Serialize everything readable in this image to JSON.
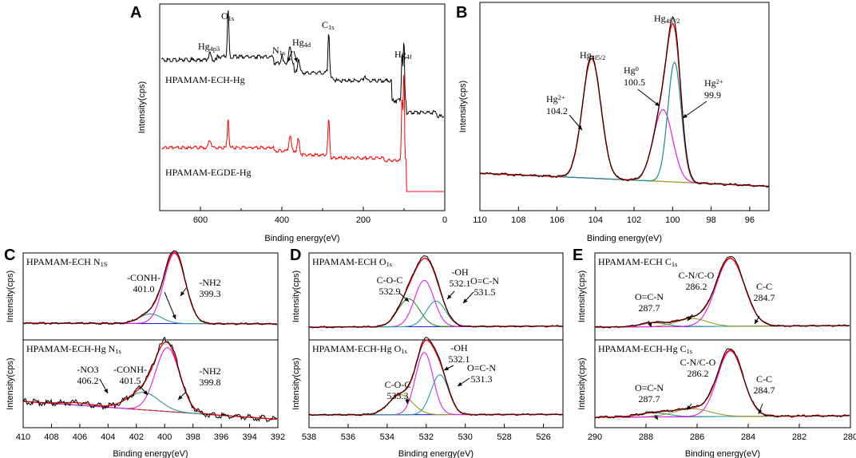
{
  "figure": {
    "panel_letters": [
      "A",
      "B",
      "C",
      "D",
      "E"
    ]
  },
  "chart_data": [
    {
      "id": "A",
      "type": "line",
      "title": "",
      "xlabel": "Binding energy(eV)",
      "ylabel": "Intensity(cps)",
      "xlim": [
        700,
        0
      ],
      "xticks": [
        600,
        400,
        200,
        0
      ],
      "series": [
        {
          "name": "HPAMAM-ECH-Hg",
          "color": "#000000",
          "peaks": [
            {
              "label": "Hg4p3",
              "x": 577
            },
            {
              "label": "O1s",
              "x": 532
            },
            {
              "label": "N1s",
              "x": 400
            },
            {
              "label": "Hg4d",
              "x": 380
            },
            {
              "label": "C1s",
              "x": 285
            },
            {
              "label": "Hg4f",
              "x": 101
            }
          ]
        },
        {
          "name": "HPAMAM-EGDE-Hg",
          "color": "#ff0000"
        }
      ],
      "labels": [
        {
          "base": "Hg",
          "sub": "4p3"
        },
        {
          "base": "O",
          "sub": "1s"
        },
        {
          "base": "N",
          "sub": "1s"
        },
        {
          "base": "Hg",
          "sub": "4d"
        },
        {
          "base": "C",
          "sub": "1s"
        },
        {
          "base": "Hg",
          "sub": "4f"
        }
      ]
    },
    {
      "id": "B",
      "type": "line",
      "xlabel": "Binding energy(eV)",
      "ylabel": "Intensity(cps)",
      "xlim": [
        110,
        95
      ],
      "xticks": [
        110,
        108,
        106,
        104,
        102,
        100,
        98,
        96
      ],
      "peak_labels": [
        {
          "base": "Hg",
          "sub": "4f5/2"
        },
        {
          "base": "Hg",
          "sub": "4f7/2"
        }
      ],
      "components": [
        {
          "species": "Hg",
          "sup": "2+",
          "value": "104.2",
          "x": 104.2
        },
        {
          "species": "Hg",
          "sup": "0",
          "value": "100.5",
          "x": 100.5
        },
        {
          "species": "Hg",
          "sup": "2+",
          "value": "99.9",
          "x": 99.9
        }
      ]
    },
    {
      "id": "C",
      "type": "line",
      "xlabel": "Binding energy(eV)",
      "ylabel": "Intensity(cps)",
      "xlim": [
        410,
        392
      ],
      "xticks": [
        410,
        408,
        406,
        404,
        402,
        400,
        398,
        396,
        394,
        392
      ],
      "subplots": [
        {
          "sample": "HPAMAM-ECH",
          "core": {
            "base": "N",
            "sub": "1S"
          },
          "components": [
            {
              "name": "-CONH-",
              "value": "401.0",
              "x": 401.0
            },
            {
              "name": "-NH2",
              "value": "399.3",
              "x": 399.3
            }
          ]
        },
        {
          "sample": "HPAMAM-ECH-Hg",
          "core": {
            "base": "N",
            "sub": "1s"
          },
          "components": [
            {
              "name": "-NO3",
              "value": "406.2",
              "x": 406.2
            },
            {
              "name": "-CONH-",
              "value": "401.5",
              "x": 401.5
            },
            {
              "name": "-NH2",
              "value": "399.8",
              "x": 399.8
            }
          ]
        }
      ]
    },
    {
      "id": "D",
      "type": "line",
      "xlabel": "Binding energy(eV)",
      "ylabel": "Intensity(cps)",
      "xlim": [
        538,
        525
      ],
      "xticks": [
        538,
        536,
        534,
        532,
        530,
        528,
        526
      ],
      "subplots": [
        {
          "sample": "HPAMAM-ECH",
          "core": {
            "base": "O",
            "sub": "1s"
          },
          "components": [
            {
              "name": "C-O-C",
              "value": "532.9",
              "x": 532.9
            },
            {
              "name": "-OH",
              "value": "532.1",
              "x": 532.1
            },
            {
              "name": "O=C-N",
              "value": "531.5",
              "x": 531.5
            }
          ]
        },
        {
          "sample": "HPAMAM-ECH-Hg",
          "core": {
            "base": "O",
            "sub": "1s"
          },
          "components": [
            {
              "name": "C-O-C",
              "value": "533.3",
              "x": 533.3
            },
            {
              "name": "-OH",
              "value": "532.1",
              "x": 532.1
            },
            {
              "name": "O=C-N",
              "value": "531.3",
              "x": 531.3
            }
          ]
        }
      ]
    },
    {
      "id": "E",
      "type": "line",
      "xlabel": "Binding energy(eV)",
      "ylabel": "Intensity(cps)",
      "xlim": [
        290,
        280
      ],
      "xticks": [
        290,
        288,
        286,
        284,
        282,
        280
      ],
      "subplots": [
        {
          "sample": "HPAMAM-ECH",
          "core": {
            "base": "C",
            "sub": "1s"
          },
          "components": [
            {
              "name": "O=C-N",
              "value": "287.7",
              "x": 287.7
            },
            {
              "name": "C-N/C-O",
              "value": "286.2",
              "x": 286.2
            },
            {
              "name": "C-C",
              "value": "284.7",
              "x": 284.7
            }
          ]
        },
        {
          "sample": "HPAMAM-ECH-Hg",
          "core": {
            "base": "C",
            "sub": "1s"
          },
          "components": [
            {
              "name": "O=C-N",
              "value": "287.7",
              "x": 287.7
            },
            {
              "name": "C-N/C-O",
              "value": "286.2",
              "x": 286.2
            },
            {
              "name": "C-C",
              "value": "284.7",
              "x": 284.7
            }
          ]
        }
      ]
    }
  ]
}
